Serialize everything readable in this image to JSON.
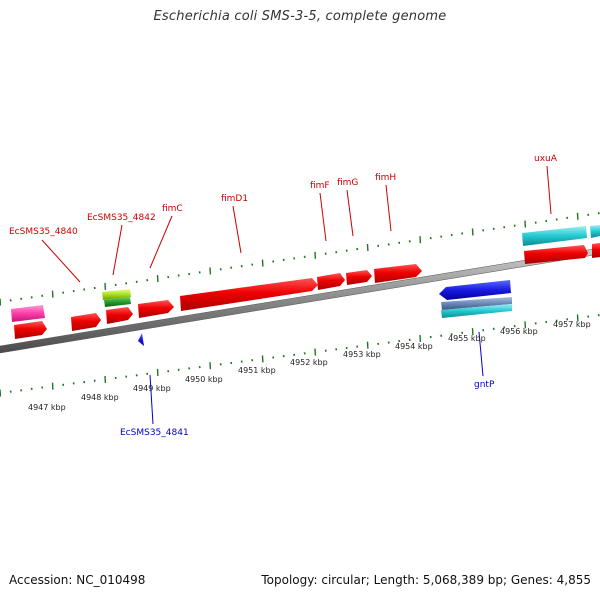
{
  "title": "Escherichia coli SMS-3-5, complete genome",
  "footer": {
    "accession": "Accession: NC_010498",
    "summary": "Topology: circular; Length: 5,068,389 bp; Genes: 4,855"
  },
  "colors": {
    "forward_label": "#cc0000",
    "reverse_label": "#0000cc",
    "tick": "#227722",
    "axis": "#7a7a7a"
  },
  "kbp_labels": [
    "4947 kbp",
    "4948 kbp",
    "4949 kbp",
    "4950 kbp",
    "4951 kbp",
    "4952 kbp",
    "4953 kbp",
    "4954 kbp",
    "4955 kbp",
    "4956 kbp",
    "4957 kbp"
  ],
  "gene_labels": [
    {
      "name": "EcSMS35_4840",
      "strand": "forward"
    },
    {
      "name": "EcSMS35_4842",
      "strand": "forward"
    },
    {
      "name": "fimC",
      "strand": "forward"
    },
    {
      "name": "fimD1",
      "strand": "forward"
    },
    {
      "name": "fimF",
      "strand": "forward"
    },
    {
      "name": "fimG",
      "strand": "forward"
    },
    {
      "name": "fimH",
      "strand": "forward"
    },
    {
      "name": "uxuA",
      "strand": "forward"
    },
    {
      "name": "EcSMS35_4841",
      "strand": "reverse"
    },
    {
      "name": "gntP",
      "strand": "reverse"
    }
  ]
}
